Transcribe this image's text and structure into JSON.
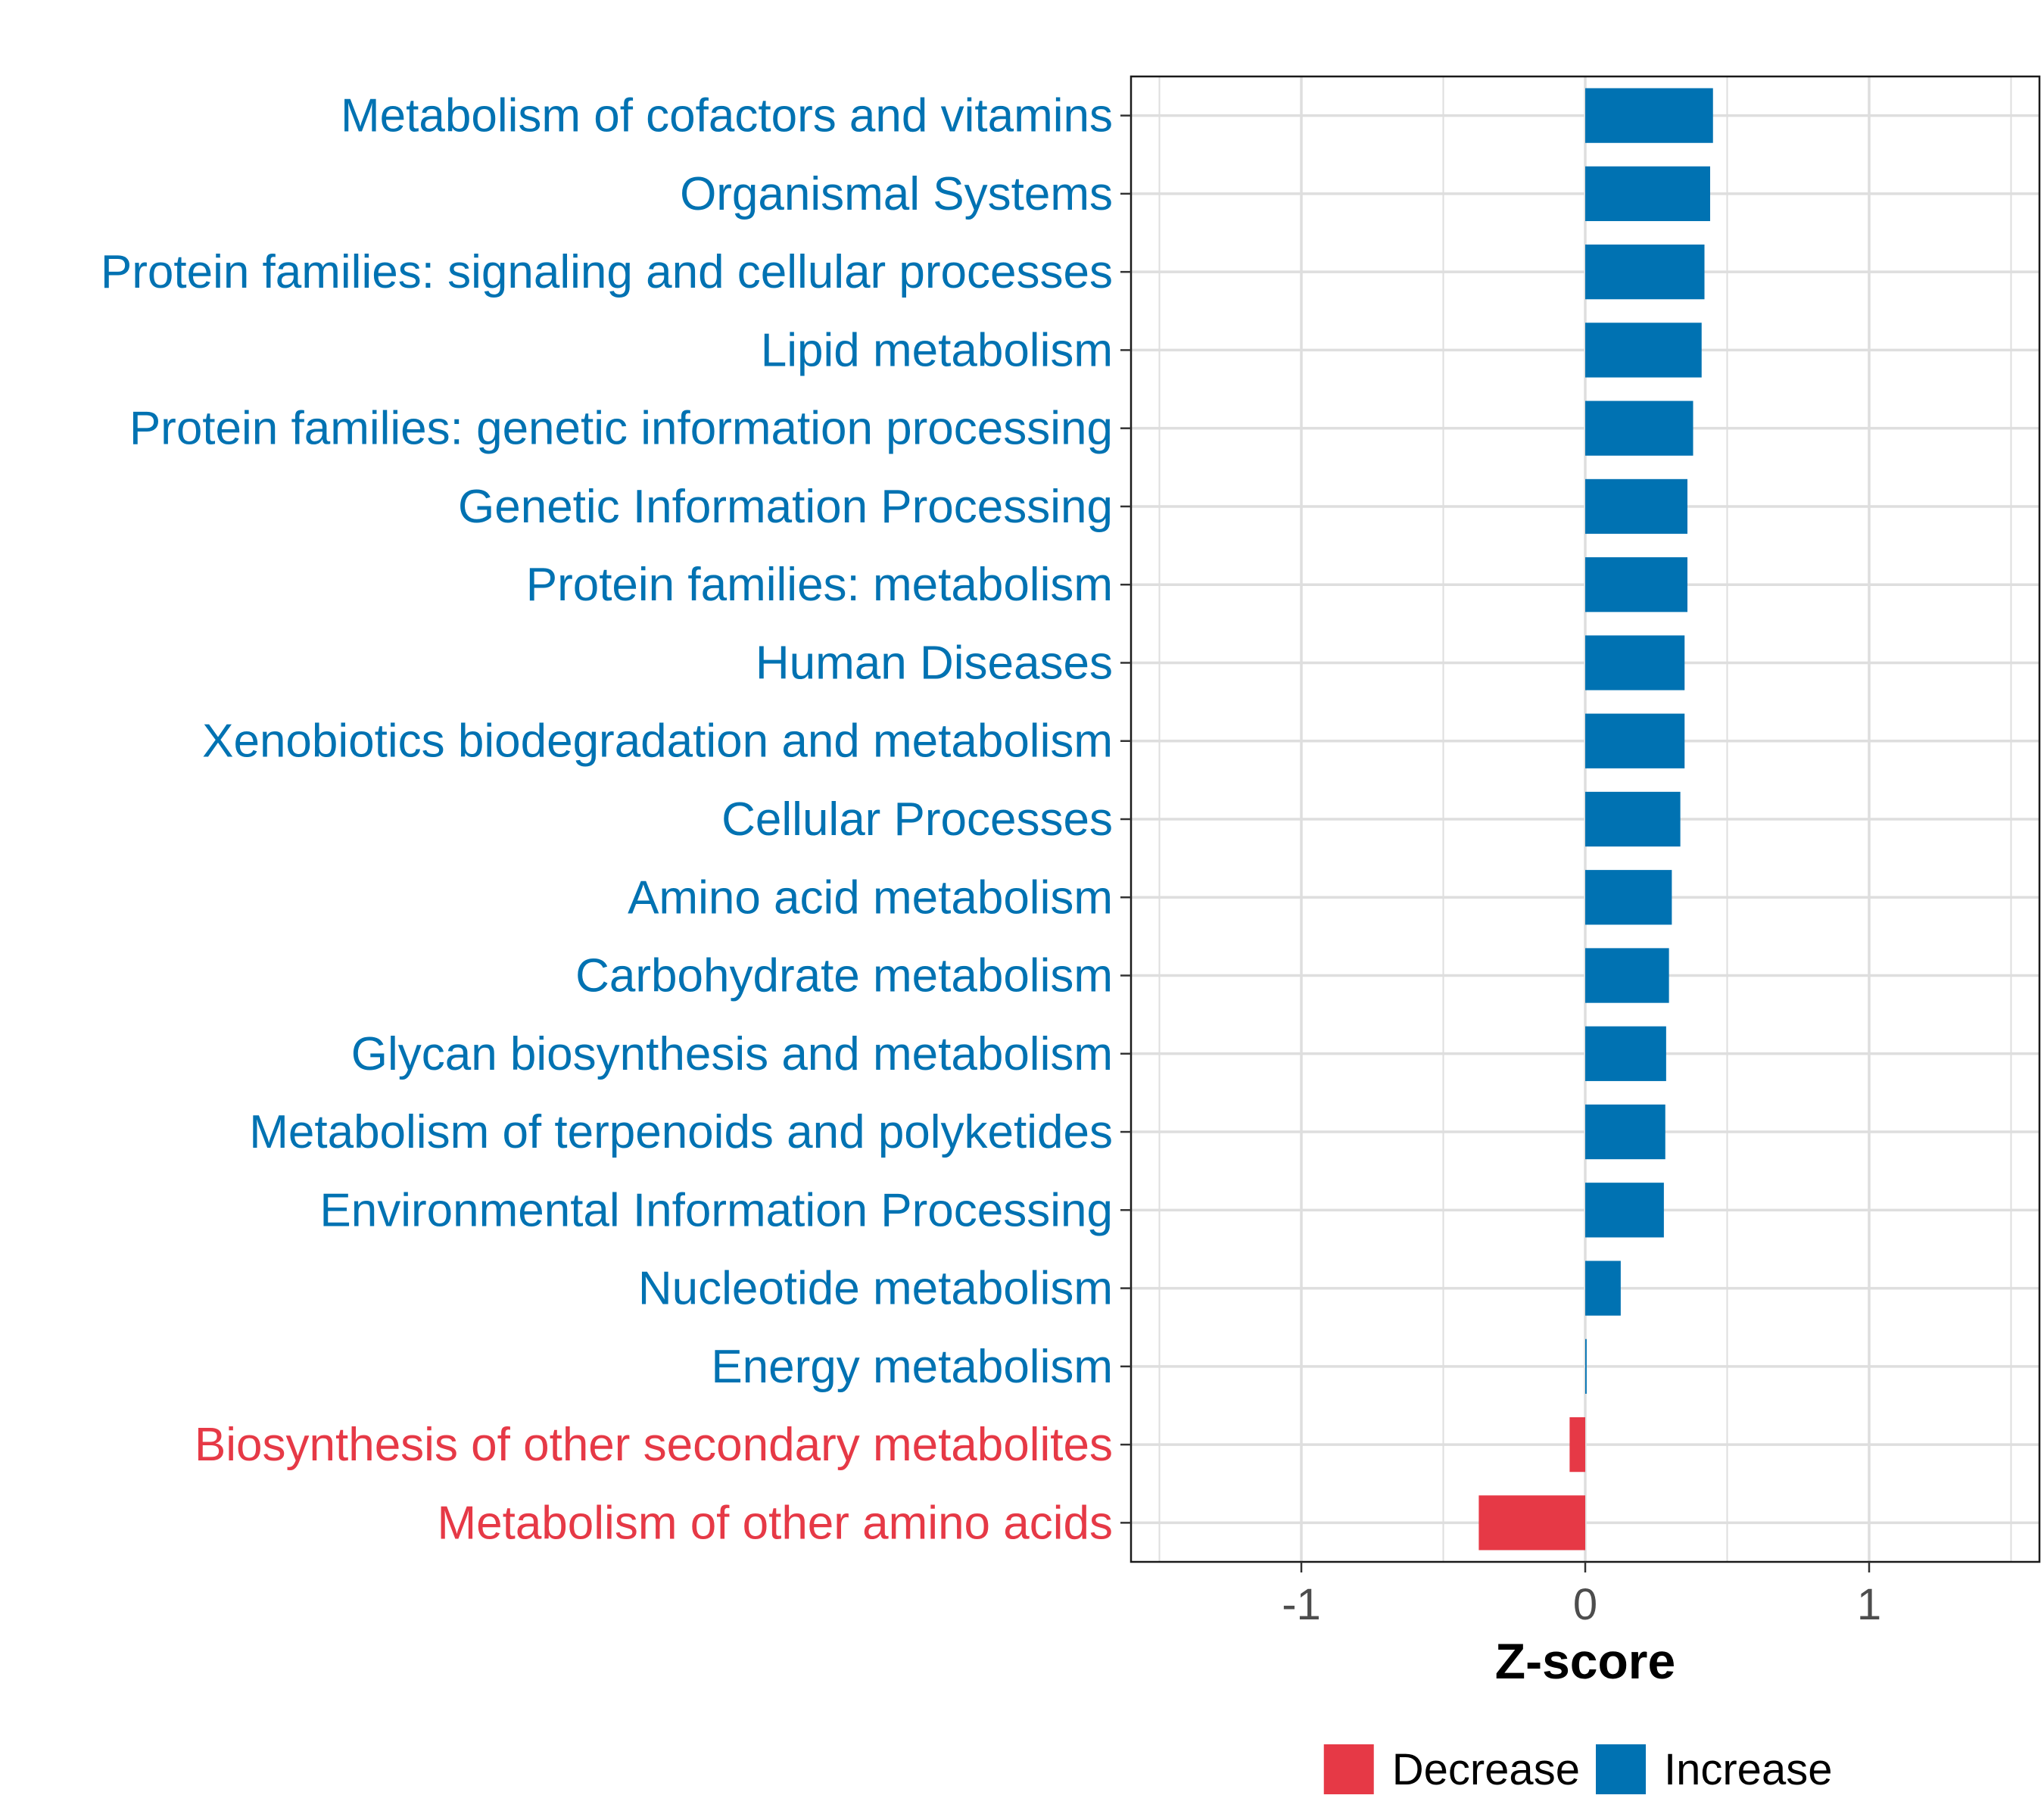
{
  "chart_data": {
    "type": "bar",
    "orientation": "horizontal",
    "title": "",
    "xlabel": "Z-score",
    "ylabel": "",
    "xlim": [
      -1.6,
      1.6
    ],
    "xticks": [
      {
        "value": -1,
        "label": "-1"
      },
      {
        "value": 0,
        "label": "0"
      },
      {
        "value": 1,
        "label": "1"
      }
    ],
    "grid": true,
    "categories": [
      "Metabolism of cofactors and vitamins",
      "Organismal Systems",
      "Protein families: signaling and cellular processes",
      "Lipid metabolism",
      "Protein families: genetic information processing",
      "Genetic Information Processing",
      "Protein families: metabolism",
      "Human Diseases",
      "Xenobiotics biodegradation and metabolism",
      "Cellular Processes",
      "Amino acid metabolism",
      "Carbohydrate metabolism",
      "Glycan biosynthesis and metabolism",
      "Metabolism of terpenoids and polyketides",
      "Environmental Information Processing",
      "Nucleotide metabolism",
      "Energy metabolism",
      "Biosynthesis of other secondary metabolites",
      "Metabolism of other amino acids"
    ],
    "values": [
      0.45,
      0.44,
      0.42,
      0.41,
      0.38,
      0.36,
      0.36,
      0.35,
      0.35,
      0.335,
      0.305,
      0.295,
      0.285,
      0.282,
      0.277,
      0.125,
      0.005,
      -0.055,
      -0.375
    ],
    "groups": [
      "Increase",
      "Increase",
      "Increase",
      "Increase",
      "Increase",
      "Increase",
      "Increase",
      "Increase",
      "Increase",
      "Increase",
      "Increase",
      "Increase",
      "Increase",
      "Increase",
      "Increase",
      "Increase",
      "Increase",
      "Decrease",
      "Decrease"
    ],
    "legend": {
      "position": "bottom",
      "items": [
        {
          "name": "Decrease",
          "color": "#E63946"
        },
        {
          "name": "Increase",
          "color": "#0072B2"
        }
      ]
    }
  }
}
